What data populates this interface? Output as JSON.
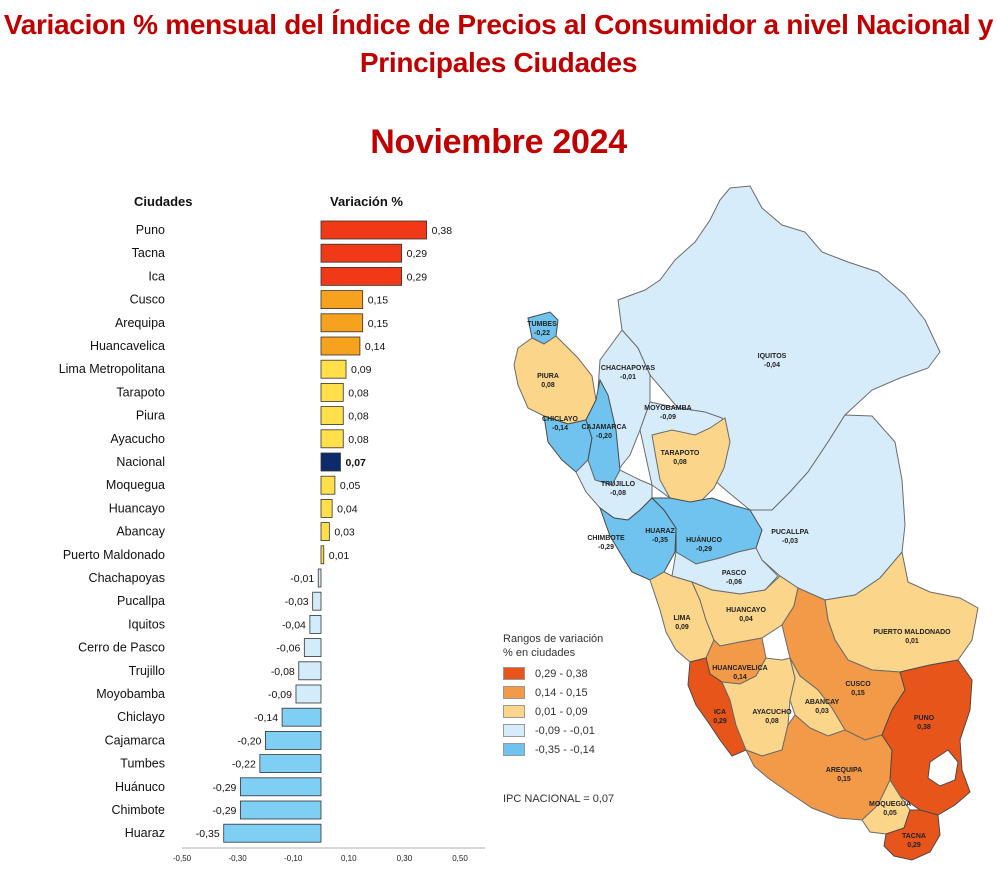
{
  "title_line1": "Variacion % mensual del Índice de Precios al Consumidor a nivel Nacional y",
  "title_line2": "Principales Ciudades",
  "subtitle": "Noviembre 2024",
  "chart_data": {
    "type": "bar",
    "orientation": "horizontal",
    "col_header_categories": "Ciudades",
    "col_header_values": "Variación %",
    "categories": [
      "Puno",
      "Tacna",
      "Ica",
      "Cusco",
      "Arequipa",
      "Huancavelica",
      "Lima Metropolitana",
      "Tarapoto",
      "Piura",
      "Ayacucho",
      "Nacional",
      "Moquegua",
      "Huancayo",
      "Abancay",
      "Puerto Maldonado",
      "Chachapoyas",
      "Pucallpa",
      "Iquitos",
      "Cerro de Pasco",
      "Trujillo",
      "Moyobamba",
      "Chiclayo",
      "Cajamarca",
      "Tumbes",
      "Huánuco",
      "Chimbote",
      "Huaraz"
    ],
    "values": [
      0.38,
      0.29,
      0.29,
      0.15,
      0.15,
      0.14,
      0.09,
      0.08,
      0.08,
      0.08,
      0.07,
      0.05,
      0.04,
      0.03,
      0.01,
      -0.01,
      -0.03,
      -0.04,
      -0.06,
      -0.08,
      -0.09,
      -0.14,
      -0.2,
      -0.22,
      -0.29,
      -0.29,
      -0.35
    ],
    "value_labels": [
      "0,38",
      "0,29",
      "0,29",
      "0,15",
      "0,15",
      "0,14",
      "0,09",
      "0,08",
      "0,08",
      "0,08",
      "0,07",
      "0,05",
      "0,04",
      "0,03",
      "0,01",
      "-0,01",
      "-0,03",
      "-0,04",
      "-0,06",
      "-0,08",
      "-0,09",
      "-0,14",
      "-0,20",
      "-0,22",
      "-0,29",
      "-0,29",
      "-0,35"
    ],
    "xlim": [
      -0.5,
      0.5
    ],
    "xticks": [
      -0.5,
      -0.3,
      -0.1,
      0.1,
      0.3,
      0.5
    ],
    "xtick_labels": [
      "-0,50",
      "-0,30",
      "-0,10",
      "0,10",
      "0,30",
      "0,50"
    ],
    "highlight": "Nacional"
  },
  "colors": {
    "red": "#f03a17",
    "orange": "#f7a21e",
    "yellow": "#ffe04a",
    "lightblue": "#d2ecfb",
    "blue": "#7fcff5",
    "navy": "#0d2a6b",
    "title": "#c00000"
  },
  "map": {
    "legend_title_1": "Rangos de variación",
    "legend_title_2": "% en ciudades",
    "legend": [
      {
        "label": "0,29  -  0,38",
        "color": "#e8551b"
      },
      {
        "label": "0,14  -  0,15",
        "color": "#f29a47"
      },
      {
        "label": "0,01  -  0,09",
        "color": "#fbd58a"
      },
      {
        "label": "-0,09  -  -0,01",
        "color": "#d6ecfa"
      },
      {
        "label": "-0,35  -  -0,14",
        "color": "#6fc3ee"
      }
    ],
    "ipc_nacional": "IPC NACIONAL = 0,07",
    "labels": [
      {
        "name": "TUMBES",
        "value": "-0,22"
      },
      {
        "name": "PIURA",
        "value": "0,08"
      },
      {
        "name": "CHACHAPOYAS",
        "value": "-0,01"
      },
      {
        "name": "IQUITOS",
        "value": "-0,04"
      },
      {
        "name": "MOYOBAMBA",
        "value": "-0,09"
      },
      {
        "name": "CHICLAYO",
        "value": "-0,14"
      },
      {
        "name": "CAJAMARCA",
        "value": "-0,20"
      },
      {
        "name": "TARAPOTO",
        "value": "0,08"
      },
      {
        "name": "TRUJILLO",
        "value": "-0,08"
      },
      {
        "name": "CHIMBOTE",
        "value": "-0,29"
      },
      {
        "name": "HUARAZ",
        "value": "-0,35"
      },
      {
        "name": "HUÁNUCO",
        "value": "-0,29"
      },
      {
        "name": "PUCALLPA",
        "value": "-0,03"
      },
      {
        "name": "PASCO",
        "value": "-0,06"
      },
      {
        "name": "LIMA",
        "value": "0,09"
      },
      {
        "name": "HUANCAYO",
        "value": "0,04"
      },
      {
        "name": "PUERTO MALDONADO",
        "value": "0,01"
      },
      {
        "name": "HUANCAVELICA",
        "value": "0,14"
      },
      {
        "name": "CUSCO",
        "value": "0,15"
      },
      {
        "name": "ABANCAY",
        "value": "0,03"
      },
      {
        "name": "ICA",
        "value": "0,29"
      },
      {
        "name": "AYACUCHO",
        "value": "0,08"
      },
      {
        "name": "PUNO",
        "value": "0,38"
      },
      {
        "name": "AREQUIPA",
        "value": "0,15"
      },
      {
        "name": "MOQUEGUA",
        "value": "0,05"
      },
      {
        "name": "TACNA",
        "value": "0,29"
      }
    ]
  }
}
